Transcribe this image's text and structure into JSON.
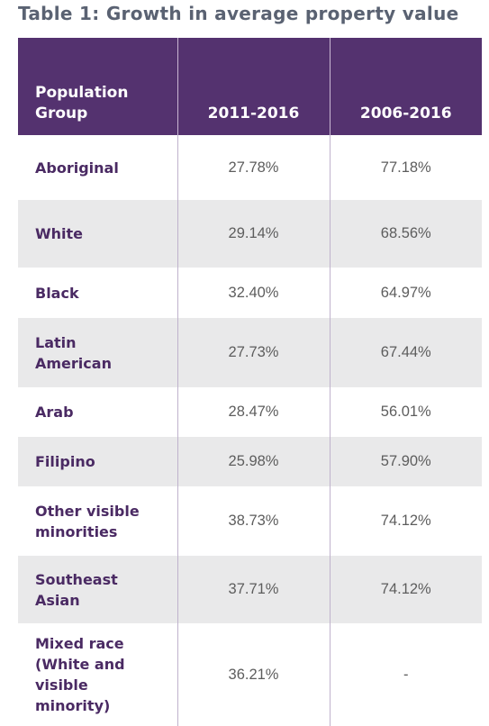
{
  "title": "Table 1: Growth in average property value",
  "table": {
    "headers": [
      "Population Group",
      "2011-2016",
      "2006-2016"
    ],
    "rows": [
      {
        "group": "Aboriginal",
        "v2011_2016": "27.78%",
        "v2006_2016": "77.18%"
      },
      {
        "group": "White",
        "v2011_2016": "29.14%",
        "v2006_2016": "68.56%"
      },
      {
        "group": "Black",
        "v2011_2016": "32.40%",
        "v2006_2016": "64.97%"
      },
      {
        "group": "Latin American",
        "v2011_2016": "27.73%",
        "v2006_2016": "67.44%"
      },
      {
        "group": "Arab",
        "v2011_2016": "28.47%",
        "v2006_2016": "56.01%"
      },
      {
        "group": "Filipino",
        "v2011_2016": "25.98%",
        "v2006_2016": "57.90%"
      },
      {
        "group": "Other visible minorities",
        "v2011_2016": "38.73%",
        "v2006_2016": "74.12%"
      },
      {
        "group": "Southeast Asian",
        "v2011_2016": "37.71%",
        "v2006_2016": "74.12%"
      },
      {
        "group": "Mixed race (White and visible minority)",
        "v2011_2016": "36.21%",
        "v2006_2016": "-"
      }
    ]
  },
  "colors": {
    "header_background": "#54326f",
    "header_text": "#ffffff",
    "label_text": "#4a2a63",
    "value_text": "#5d5d5d",
    "stripe_background": "#e9e9ea",
    "title_text": "#5a6272"
  }
}
